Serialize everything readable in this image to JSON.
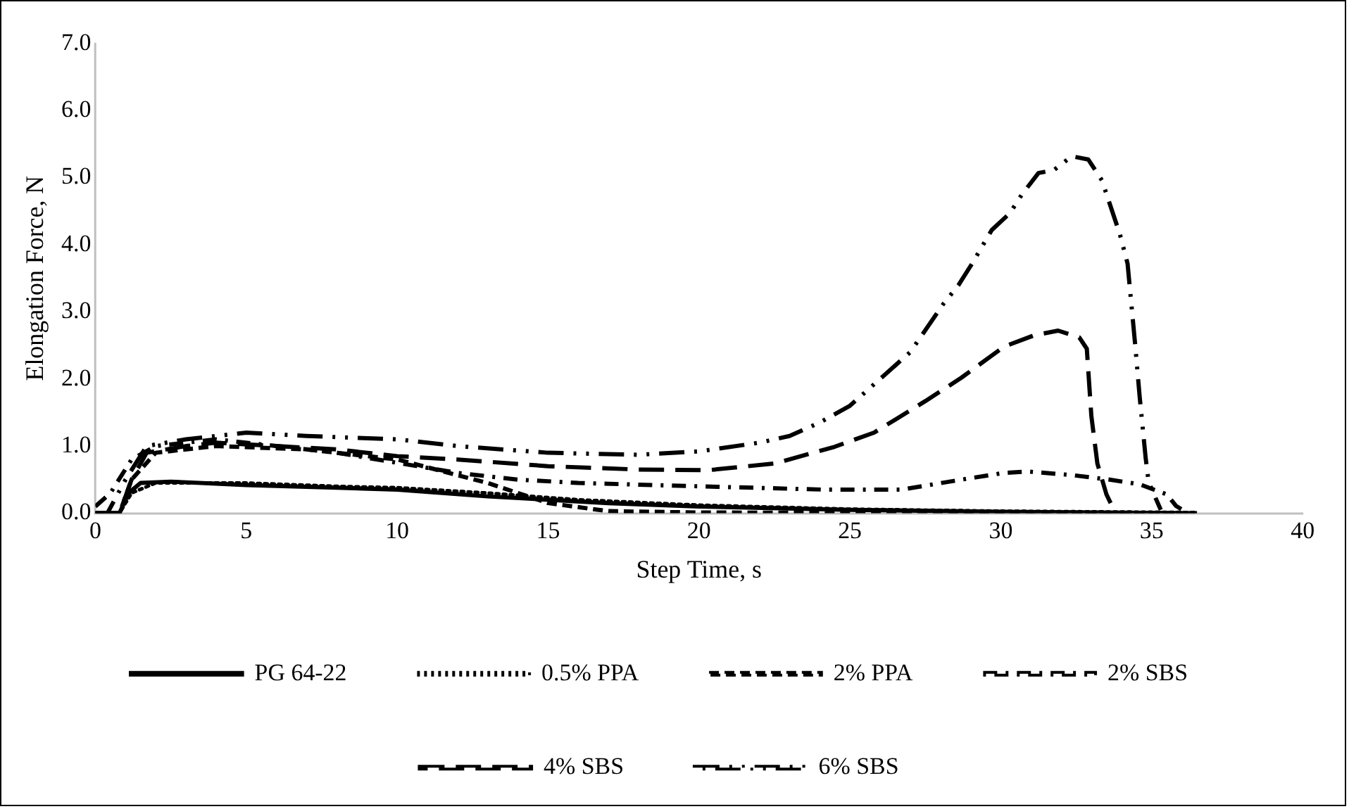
{
  "chart_data": {
    "type": "line",
    "xlabel": "Step Time, s",
    "ylabel": "Elongation Force, N",
    "xlim": [
      0,
      40
    ],
    "xticks": [
      0,
      5,
      10,
      15,
      20,
      25,
      30,
      35,
      40
    ],
    "ylim": [
      0,
      7
    ],
    "yticks": [
      {
        "value": 0,
        "label": "0.0"
      },
      {
        "value": 1,
        "label": "1.0"
      },
      {
        "value": 2,
        "label": "2.0"
      },
      {
        "value": 3,
        "label": "3.0"
      },
      {
        "value": 4,
        "label": "4.0"
      },
      {
        "value": 5,
        "label": "5.0"
      },
      {
        "value": 6,
        "label": "6.0"
      },
      {
        "value": 7,
        "label": "7.0"
      }
    ],
    "grid": false,
    "legend": "bottom",
    "marker": "none",
    "series": [
      {
        "name": "PG 64-22",
        "color": "#000000",
        "line_style": "solid",
        "x": [
          0,
          0.8,
          1.1,
          1.5,
          2.5,
          5,
          8,
          10,
          13,
          17,
          20,
          25,
          30,
          36.5
        ],
        "values": [
          0,
          0,
          0.3,
          0.45,
          0.47,
          0.42,
          0.38,
          0.35,
          0.25,
          0.15,
          0.1,
          0.05,
          0.02,
          0
        ]
      },
      {
        "name": "0.5% PPA",
        "color": "#000000",
        "line_style": "dotted",
        "x": [
          0,
          0.8,
          1.2,
          2,
          5,
          8,
          10,
          13,
          16,
          20,
          25,
          30,
          36.5
        ],
        "values": [
          0,
          0,
          0.3,
          0.45,
          0.45,
          0.4,
          0.38,
          0.3,
          0.2,
          0.12,
          0.06,
          0.03,
          0.01
        ]
      },
      {
        "name": "2% PPA",
        "color": "#000000",
        "line_style": "dashed",
        "x": [
          0,
          0.8,
          1.2,
          2,
          4,
          7,
          10,
          13,
          15,
          17,
          20,
          30,
          36
        ],
        "values": [
          0,
          0,
          0.5,
          0.9,
          1,
          0.95,
          0.8,
          0.45,
          0.15,
          0.03,
          0.01,
          0,
          0
        ]
      },
      {
        "name": "2% SBS",
        "color": "#000000",
        "line_style": "dashed",
        "x": [
          0,
          0.5,
          1.2,
          2,
          4,
          6,
          8,
          10,
          12,
          14,
          16,
          20,
          24.2,
          26.7,
          28.7,
          30.1,
          30.9,
          32.3,
          33.6,
          34.6,
          35.5,
          35.8,
          36.2
        ],
        "values": [
          0.1,
          0.3,
          0.8,
          1,
          1.1,
          1,
          0.9,
          0.75,
          0.6,
          0.5,
          0.45,
          0.4,
          0.35,
          0.35,
          0.5,
          0.6,
          0.62,
          0.57,
          0.5,
          0.43,
          0.28,
          0.11,
          0
        ]
      },
      {
        "name": "4% SBS",
        "color": "#000000",
        "line_style": "dashed",
        "x": [
          0,
          0.8,
          1.2,
          1.7,
          3,
          4,
          6,
          8,
          10,
          12,
          15,
          18,
          20.3,
          22.5,
          24.5,
          25.8,
          27.5,
          28.7,
          30.1,
          31.1,
          31.9,
          32.6,
          32.85,
          33,
          33.2,
          33.5,
          33.8
        ],
        "values": [
          0,
          0,
          0.5,
          0.9,
          1,
          1.05,
          1,
          0.95,
          0.85,
          0.8,
          0.7,
          0.65,
          0.64,
          0.74,
          0.99,
          1.2,
          1.67,
          2.02,
          2.48,
          2.65,
          2.72,
          2.62,
          2.45,
          1.45,
          0.74,
          0.28,
          0
        ]
      },
      {
        "name": "6% SBS",
        "color": "#000000",
        "line_style": "dashed",
        "x": [
          0,
          0.4,
          1,
          1.7,
          3,
          5,
          7,
          10,
          12,
          15,
          18,
          20,
          22,
          23,
          24,
          25,
          26,
          27,
          28.1,
          28.6,
          29.05,
          29.7,
          30.3,
          30.7,
          31.25,
          31.75,
          32.35,
          32.9,
          33.35,
          33.95,
          34.2,
          34.45,
          34.6,
          34.8,
          34.9,
          35.3
        ],
        "values": [
          0,
          0,
          0.5,
          1,
          1.1,
          1.2,
          1.15,
          1.1,
          1,
          0.9,
          0.87,
          0.92,
          1.05,
          1.15,
          1.35,
          1.6,
          2,
          2.4,
          3.12,
          3.4,
          3.72,
          4.22,
          4.47,
          4.75,
          5.07,
          5.11,
          5.32,
          5.27,
          4.96,
          4.15,
          3.72,
          2.52,
          1.74,
          0.82,
          0.46,
          0.05
        ]
      }
    ]
  }
}
